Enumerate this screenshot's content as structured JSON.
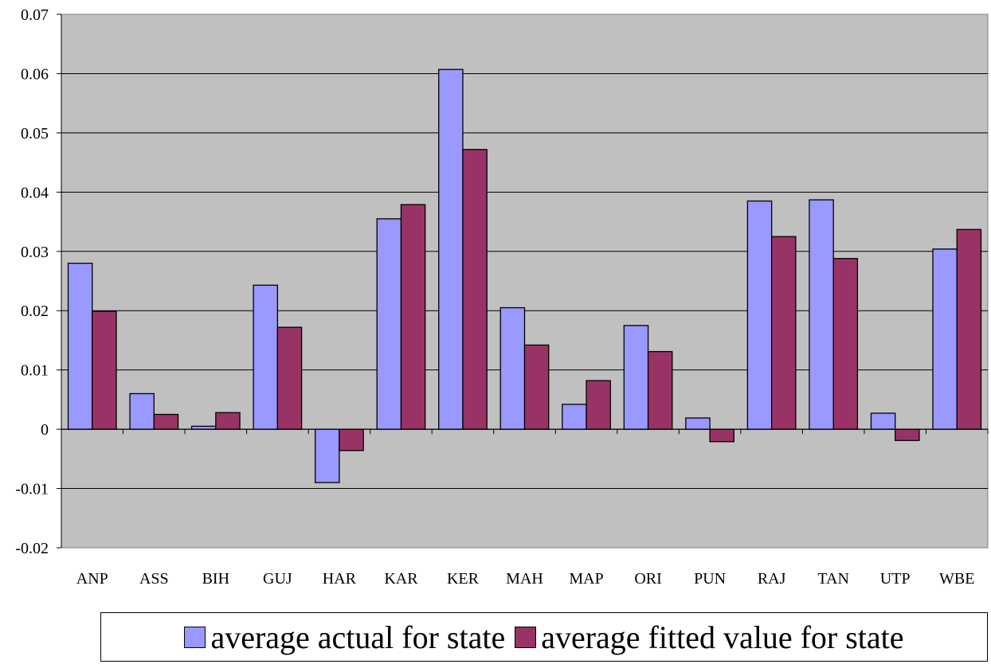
{
  "colors": {
    "plot_bg": "#c0c0c0",
    "series1": "#9999ff",
    "series2": "#993366",
    "grid": "#000000"
  },
  "chart_data": {
    "type": "bar",
    "categories": [
      "ANP",
      "ASS",
      "BIH",
      "GUJ",
      "HAR",
      "KAR",
      "KER",
      "MAH",
      "MAP",
      "ORI",
      "PUN",
      "RAJ",
      "TAN",
      "UTP",
      "WBE"
    ],
    "series": [
      {
        "name": "average actual for state",
        "values": [
          0.028,
          0.006,
          0.0005,
          0.0243,
          -0.009,
          0.0355,
          0.0607,
          0.0205,
          0.0042,
          0.0175,
          0.0019,
          0.0385,
          0.0387,
          0.0027,
          0.0304
        ]
      },
      {
        "name": "average fitted value for state",
        "values": [
          0.0199,
          0.0025,
          0.0028,
          0.0172,
          -0.0036,
          0.0379,
          0.0472,
          0.0142,
          0.0082,
          0.0131,
          -0.0021,
          0.0325,
          0.0288,
          -0.0019,
          0.0337
        ]
      }
    ],
    "ylim": [
      -0.02,
      0.07
    ],
    "yticks": [
      "-0.02",
      "-0.01",
      "0",
      "0.01",
      "0.02",
      "0.03",
      "0.04",
      "0.05",
      "0.06",
      "0.07"
    ],
    "grid": true,
    "legend_position": "bottom"
  }
}
